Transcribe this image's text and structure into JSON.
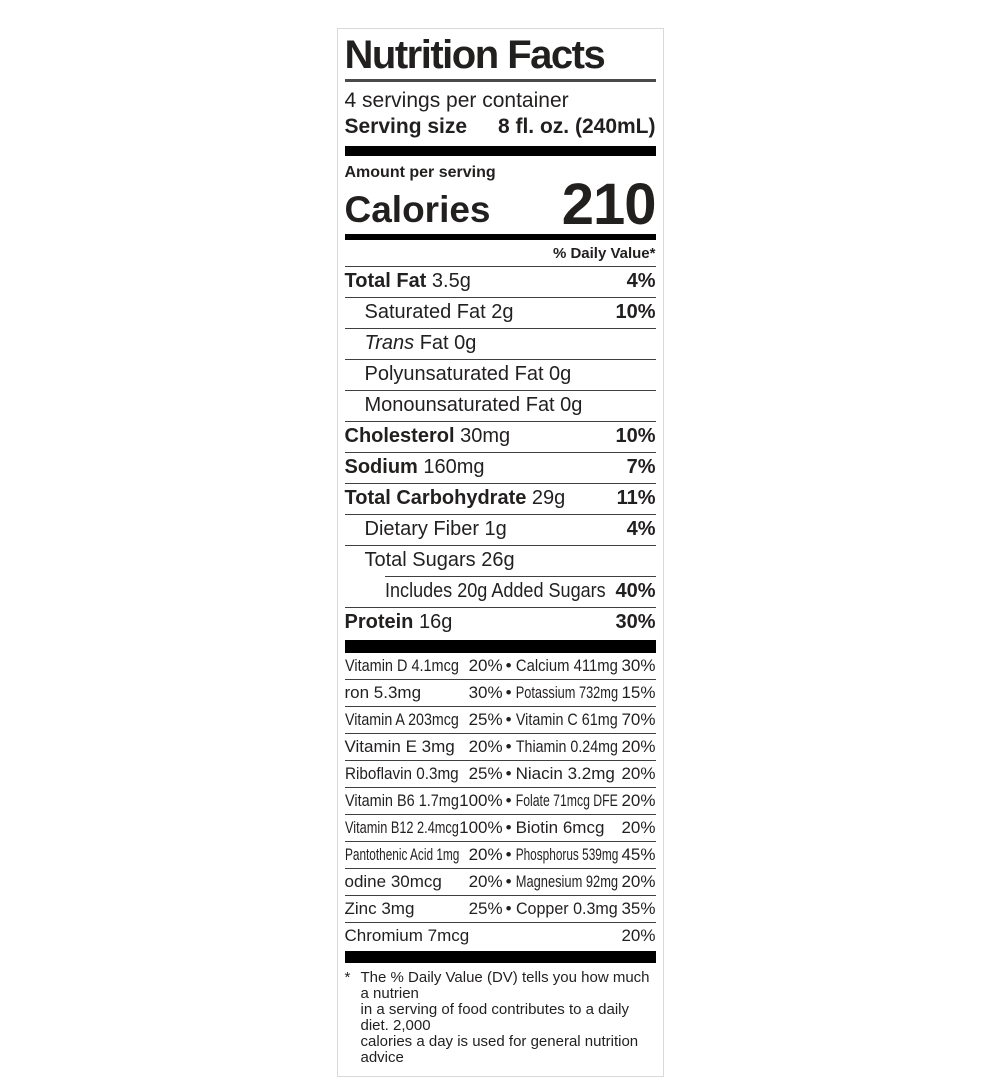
{
  "label": {
    "title": "Nutrition Facts",
    "servings_per_container": "4 servings per container",
    "serving_size": {
      "label": "Serving size",
      "value": "8 fl. oz. (240mL)"
    },
    "amount_per_serving": "Amount per serving",
    "calories": {
      "label": "Calories",
      "value": "210"
    },
    "daily_value_header": "% Daily Value*",
    "separator_bullet": "•",
    "nutrient_rows": [
      {
        "bold_name": "Total Fat",
        "rest": "3.5g",
        "dv": "4%",
        "indent": 0
      },
      {
        "name": "Saturated Fat 2g",
        "dv": "10%",
        "indent": 1
      },
      {
        "italic": "Trans",
        "name": " Fat 0g",
        "dv": "",
        "indent": 1
      },
      {
        "name": "Polyunsaturated Fat 0g",
        "dv": "",
        "indent": 1
      },
      {
        "name": "Monounsaturated Fat 0g",
        "dv": "",
        "indent": 1
      },
      {
        "bold_name": "Cholesterol",
        "rest": "30mg",
        "dv": "10%",
        "indent": 0
      },
      {
        "bold_name": "Sodium",
        "rest": "160mg",
        "dv": "7%",
        "indent": 0
      },
      {
        "bold_name": "Total Carbohydrate",
        "rest": "29g",
        "dv": "11%",
        "indent": 0
      },
      {
        "name": "Dietary Fiber 1g",
        "dv": "4%",
        "indent": 1
      },
      {
        "name": "Total Sugars 26g",
        "dv": "",
        "indent": 1
      },
      {
        "name": "Includes 20g Added Sugars",
        "dv": "40%",
        "indent": 2,
        "divider": "indented"
      },
      {
        "bold_name": "Protein",
        "rest": "16g",
        "dv": "30%",
        "indent": 0
      }
    ],
    "vitamin_rows": [
      {
        "left": {
          "name": "Vitamin D 4.1mcg",
          "dv": "20%"
        },
        "right": {
          "name": "Calcium 411mg",
          "dv": "30%"
        }
      },
      {
        "left": {
          "name": "ron 5.3mg",
          "dv": "30%"
        },
        "right": {
          "name": "Potassium 732mg",
          "dv": "15%"
        }
      },
      {
        "left": {
          "name": "Vitamin A 203mcg",
          "dv": "25%"
        },
        "right": {
          "name": "Vitamin C 61mg",
          "dv": "70%"
        }
      },
      {
        "left": {
          "name": "Vitamin E 3mg",
          "dv": "20%"
        },
        "right": {
          "name": "Thiamin 0.24mg",
          "dv": "20%"
        }
      },
      {
        "left": {
          "name": "Riboflavin 0.3mg",
          "dv": "25%"
        },
        "right": {
          "name": "Niacin 3.2mg",
          "dv": "20%"
        }
      },
      {
        "left": {
          "name": "Vitamin B6 1.7mg",
          "dv": "100%"
        },
        "right": {
          "name": "Folate 71mcg DFE",
          "dv": "20%"
        }
      },
      {
        "left": {
          "name": "Vitamin B12 2.4mcg",
          "dv": "100%"
        },
        "right": {
          "name": "Biotin 6mcg",
          "dv": "20%"
        }
      },
      {
        "left": {
          "name": "Pantothenic Acid 1mg",
          "dv": "20%"
        },
        "right": {
          "name": "Phosphorus 539mg",
          "dv": "45%"
        }
      },
      {
        "left": {
          "name": "odine 30mcg",
          "dv": "20%"
        },
        "right": {
          "name": "Magnesium 92mg",
          "dv": "20%"
        }
      },
      {
        "left": {
          "name": "Zinc 3mg",
          "dv": "25%"
        },
        "right": {
          "name": "Copper 0.3mg",
          "dv": "35%"
        }
      },
      {
        "left": {
          "name": "Chromium 7mcg",
          "dv": "20%"
        },
        "right": null
      }
    ],
    "footnote": {
      "marker": "*",
      "lines": [
        "The % Daily Value (DV) tells you how much a nutrien",
        "in a serving of food contributes to a daily diet. 2,000",
        "calories a day is used for general nutrition advice"
      ]
    },
    "colors": {
      "text": "#221f1f",
      "bar": "#000000",
      "hairline": "#3f3f3f",
      "label_border": "#d9d9d9",
      "background": "#ffffff"
    }
  }
}
